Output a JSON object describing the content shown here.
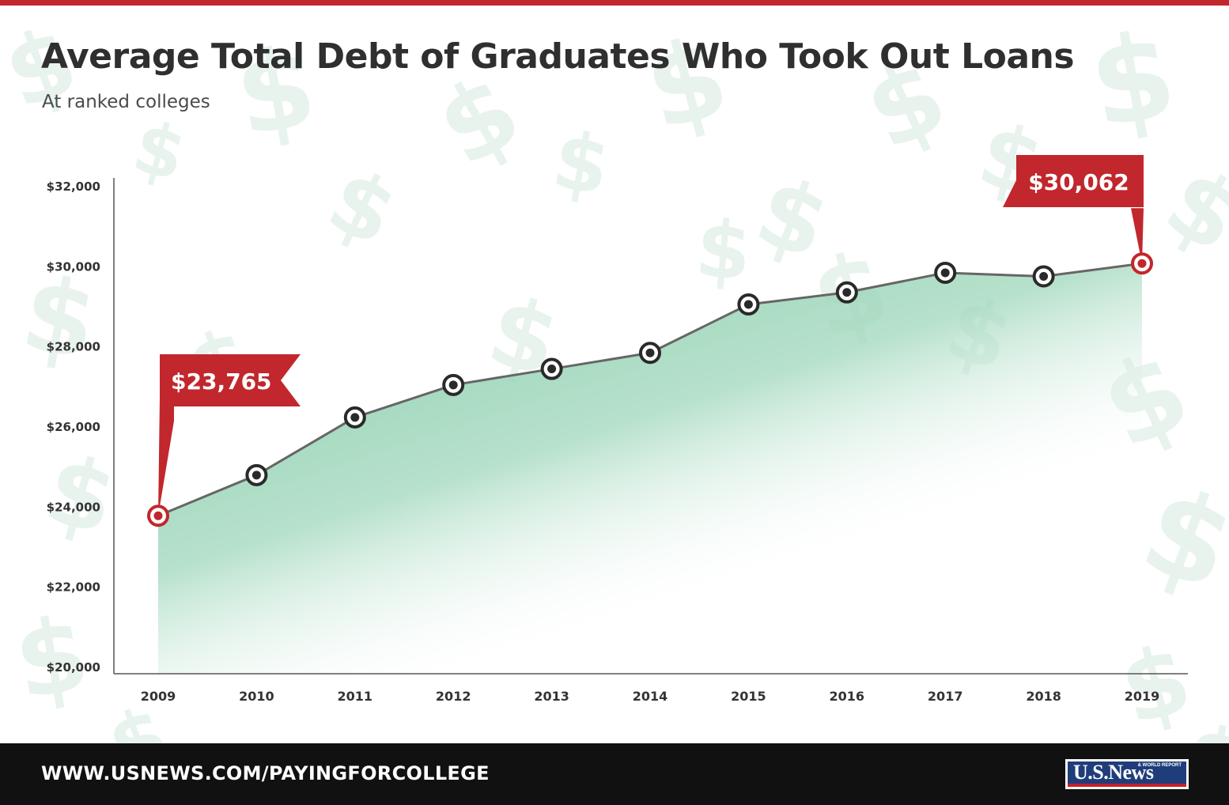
{
  "title": "Average Total Debt of Graduates Who Took Out Loans",
  "subtitle": "At ranked colleges",
  "footer": {
    "url": "WWW.USNEWS.COM/PAYINGFORCOLLEGE",
    "logo_text": "U.S.News",
    "logo_small": "& WORLD REPORT"
  },
  "colors": {
    "accent_red": "#c1272d",
    "line": "#666666",
    "area_green": "#8fd0b0",
    "marker_dark": "#2a2a2a",
    "text_dark": "#2f2f2f",
    "background_pattern": "#cfe6da",
    "footer_bg": "#111111"
  },
  "chart_data": {
    "type": "area",
    "x": [
      "2009",
      "2010",
      "2011",
      "2012",
      "2013",
      "2014",
      "2015",
      "2016",
      "2017",
      "2018",
      "2019"
    ],
    "series": [
      {
        "values": [
          23765,
          24780,
          26220,
          27030,
          27430,
          27830,
          29040,
          29340,
          29830,
          29740,
          30062
        ]
      }
    ],
    "ylim": [
      20000,
      32000
    ],
    "yticks": [
      20000,
      22000,
      24000,
      26000,
      28000,
      30000,
      32000
    ],
    "ytick_labels": [
      "$20,000",
      "$22,000",
      "$24,000",
      "$26,000",
      "$28,000",
      "$30,000",
      "$32,000"
    ],
    "xlabel": "",
    "ylabel": "",
    "grid": false,
    "legend": "none",
    "annotations": [
      {
        "index": 0,
        "text": "$23,765"
      },
      {
        "index": 10,
        "text": "$30,062"
      }
    ]
  }
}
